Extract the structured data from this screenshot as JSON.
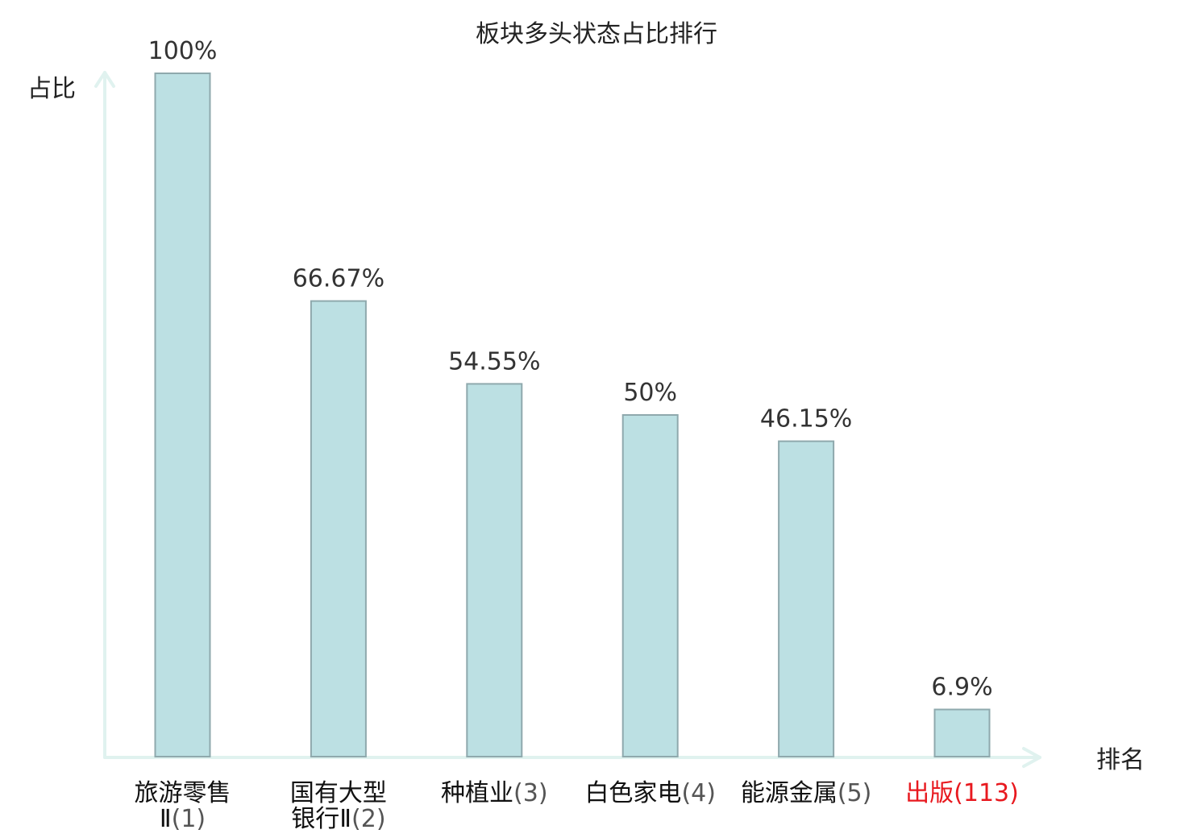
{
  "chart_data": {
    "type": "bar",
    "title": "板块多头状态占比排行",
    "ylabel": "占比",
    "xlabel": "排名",
    "ylim": [
      0,
      100
    ],
    "grid": false,
    "legend": "none",
    "categories": [
      "旅游零售Ⅱ(1)",
      "国有大型银行Ⅱ(2)",
      "种植业(3)",
      "白色家电(4)",
      "能源金属(5)",
      "出版(113)"
    ],
    "category_lines": [
      [
        "旅游零售",
        "Ⅱ(1)"
      ],
      [
        "国有大型",
        "银行Ⅱ(2)"
      ],
      [
        "种植业(3)"
      ],
      [
        "白色家电(4)"
      ],
      [
        "能源金属(5)"
      ],
      [
        "出版(113)"
      ]
    ],
    "values": [
      100,
      66.67,
      54.55,
      50,
      46.15,
      6.9
    ],
    "value_labels": [
      "100%",
      "66.67%",
      "54.55%",
      "50%",
      "46.15%",
      "6.9%"
    ],
    "highlight_index": 5,
    "colors": {
      "bar_fill": "#bce0e3",
      "bar_stroke": "#8fa9ad",
      "axis": "#e0f2ef",
      "text": "#222222",
      "value_text": "#333333",
      "highlight": "#e8191f"
    }
  }
}
